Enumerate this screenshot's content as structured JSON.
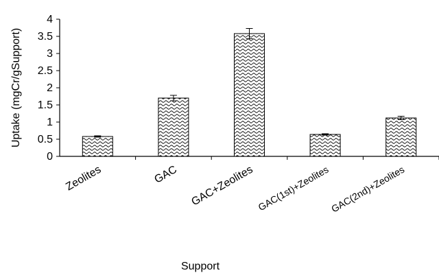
{
  "chart_data": {
    "type": "bar",
    "title": "",
    "xlabel": "Support",
    "ylabel": "Uptake (mgCr/gSupport)",
    "categories": [
      "Zeolites",
      "GAC",
      "GAC+Zeolites",
      "GAC(1st)+Zeolites",
      "GAC(2nd)+Zeolites"
    ],
    "values": [
      0.58,
      1.7,
      3.58,
      0.64,
      1.12
    ],
    "error": [
      0.02,
      0.08,
      0.15,
      0.02,
      0.05
    ],
    "ylim": [
      0,
      4
    ],
    "yticks": [
      "0",
      "0.5",
      "1",
      "1.5",
      "2",
      "2.5",
      "3",
      "3.5",
      "4"
    ],
    "grid": false,
    "bar_fill": "wavy-hatch"
  }
}
